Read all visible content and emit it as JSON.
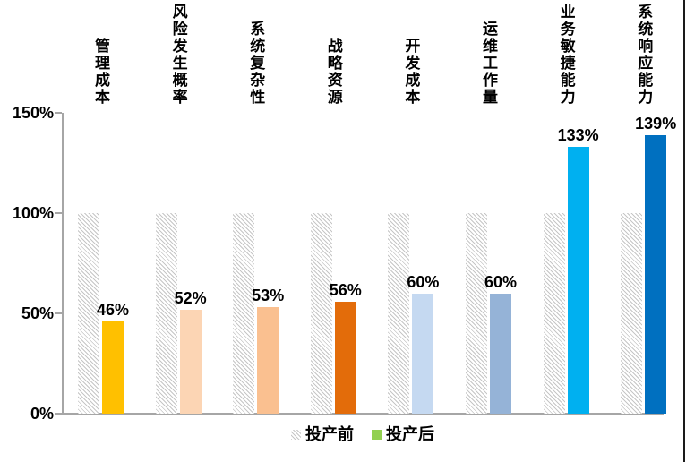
{
  "chart_data": {
    "type": "bar",
    "categories": [
      "管理成本",
      "风险发生概率",
      "系统复杂性",
      "战略资源",
      "开发成本",
      "运维工作量",
      "业务敏捷能力",
      "系统响应能力"
    ],
    "series": [
      {
        "name": "投产前",
        "style": "hatched",
        "values": [
          100,
          100,
          100,
          100,
          100,
          100,
          100,
          100
        ]
      },
      {
        "name": "投产后",
        "style": "solid",
        "values": [
          46,
          52,
          53,
          56,
          60,
          60,
          133,
          139
        ],
        "value_labels": [
          "46%",
          "52%",
          "53%",
          "56%",
          "60%",
          "60%",
          "133%",
          "139%"
        ],
        "bar_colors": [
          "#FFC000",
          "#FCD5B4",
          "#FAC090",
          "#E36C0A",
          "#C5D9F1",
          "#95B3D7",
          "#00B0F0",
          "#0070C0"
        ]
      }
    ],
    "ylim": [
      0,
      150
    ],
    "yticks": [
      {
        "value": 0,
        "label": "0%"
      },
      {
        "value": 50,
        "label": "50%"
      },
      {
        "value": 100,
        "label": "100%"
      },
      {
        "value": 150,
        "label": "150%"
      }
    ],
    "grid": false,
    "legend_position": "bottom",
    "legend": [
      {
        "label": "投产前",
        "swatch": "hatched"
      },
      {
        "label": "投产后",
        "swatch": "#92D050"
      }
    ],
    "hatch_color": "#c6c6c6",
    "axis_color": "#a6a6a6",
    "text_color": "#000000"
  }
}
